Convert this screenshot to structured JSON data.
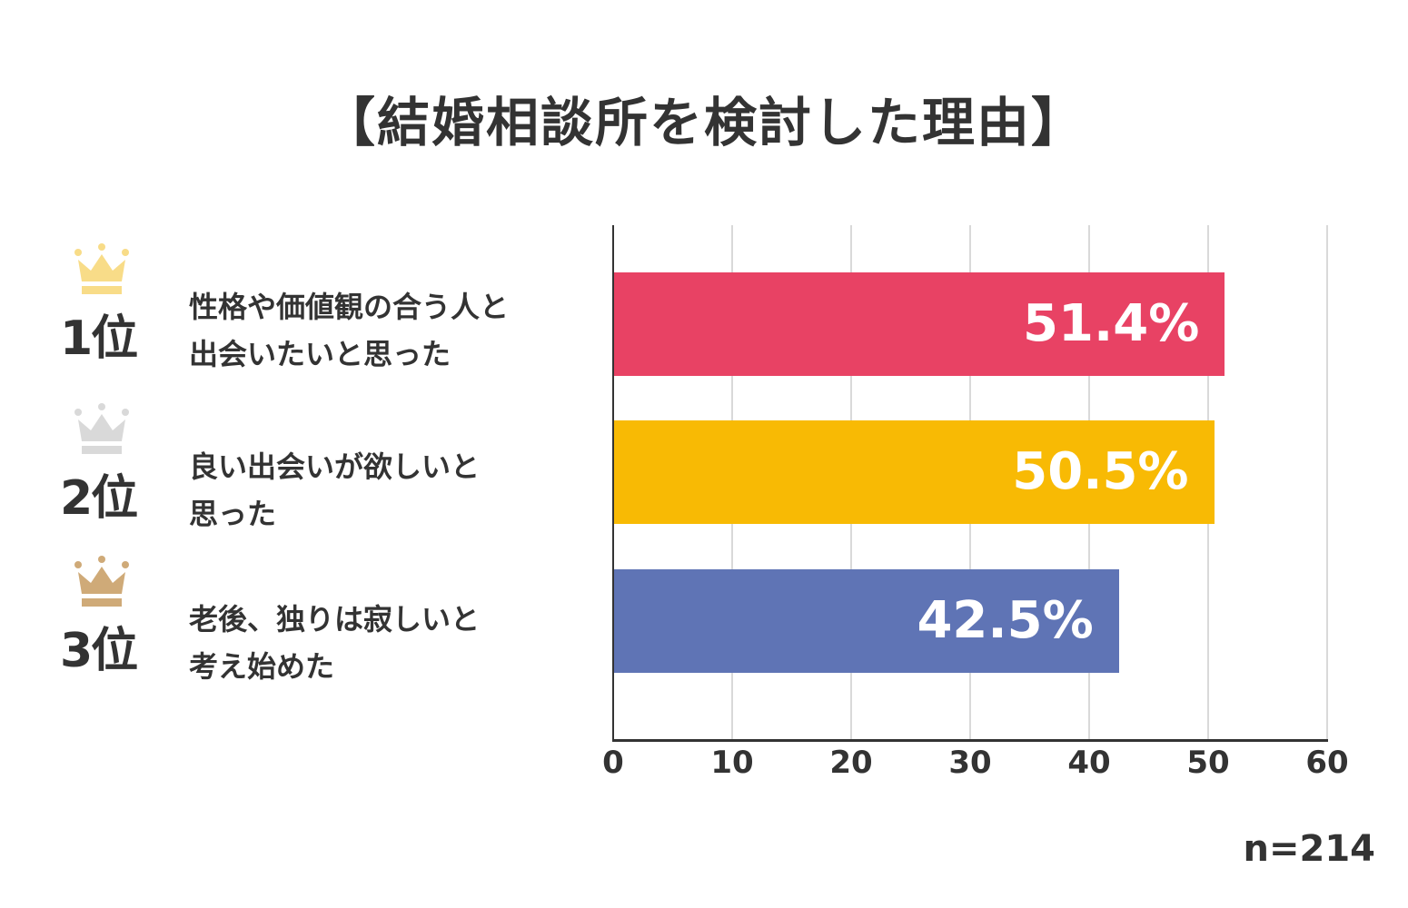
{
  "title": "【結婚相談所を検討した理由】",
  "sample_size": "n=214",
  "ranks": [
    {
      "rank_label": "1位",
      "reason": "性格や価値観の合う人と\n出会いたいと思った",
      "value_label": "51.4%",
      "value": 51.4,
      "bar_color": "#E84264",
      "crown_color": "#F8DC88",
      "crown_icon": "crown-gold-icon"
    },
    {
      "rank_label": "2位",
      "reason": "良い出会いが欲しいと\n思った",
      "value_label": "50.5%",
      "value": 50.5,
      "bar_color": "#F8BA04",
      "crown_color": "#D9D9D9",
      "crown_icon": "crown-silver-icon"
    },
    {
      "rank_label": "3位",
      "reason": "老後、独りは寂しいと\n考え始めた",
      "value_label": "42.5%",
      "value": 42.5,
      "bar_color": "#5F74B5",
      "crown_color": "#CFAA78",
      "crown_icon": "crown-bronze-icon"
    }
  ],
  "axis": {
    "ticks": [
      "0",
      "10",
      "20",
      "30",
      "40",
      "50",
      "60"
    ]
  },
  "chart_data": {
    "type": "bar",
    "orientation": "horizontal",
    "title": "【結婚相談所を検討した理由】",
    "categories": [
      "性格や価値観の合う人と出会いたいと思った",
      "良い出会いが欲しいと思った",
      "老後、独りは寂しいと考え始めた"
    ],
    "rank_labels": [
      "1位",
      "2位",
      "3位"
    ],
    "values": [
      51.4,
      50.5,
      42.5
    ],
    "data_labels": [
      "51.4%",
      "50.5%",
      "42.5%"
    ],
    "colors": [
      "#E84264",
      "#F8BA04",
      "#5F74B5"
    ],
    "xlabel": "",
    "ylabel": "",
    "xlim": [
      0,
      60
    ],
    "xticks": [
      0,
      10,
      20,
      30,
      40,
      50,
      60
    ],
    "grid": true,
    "legend": null,
    "annotations": [
      "n=214"
    ]
  }
}
